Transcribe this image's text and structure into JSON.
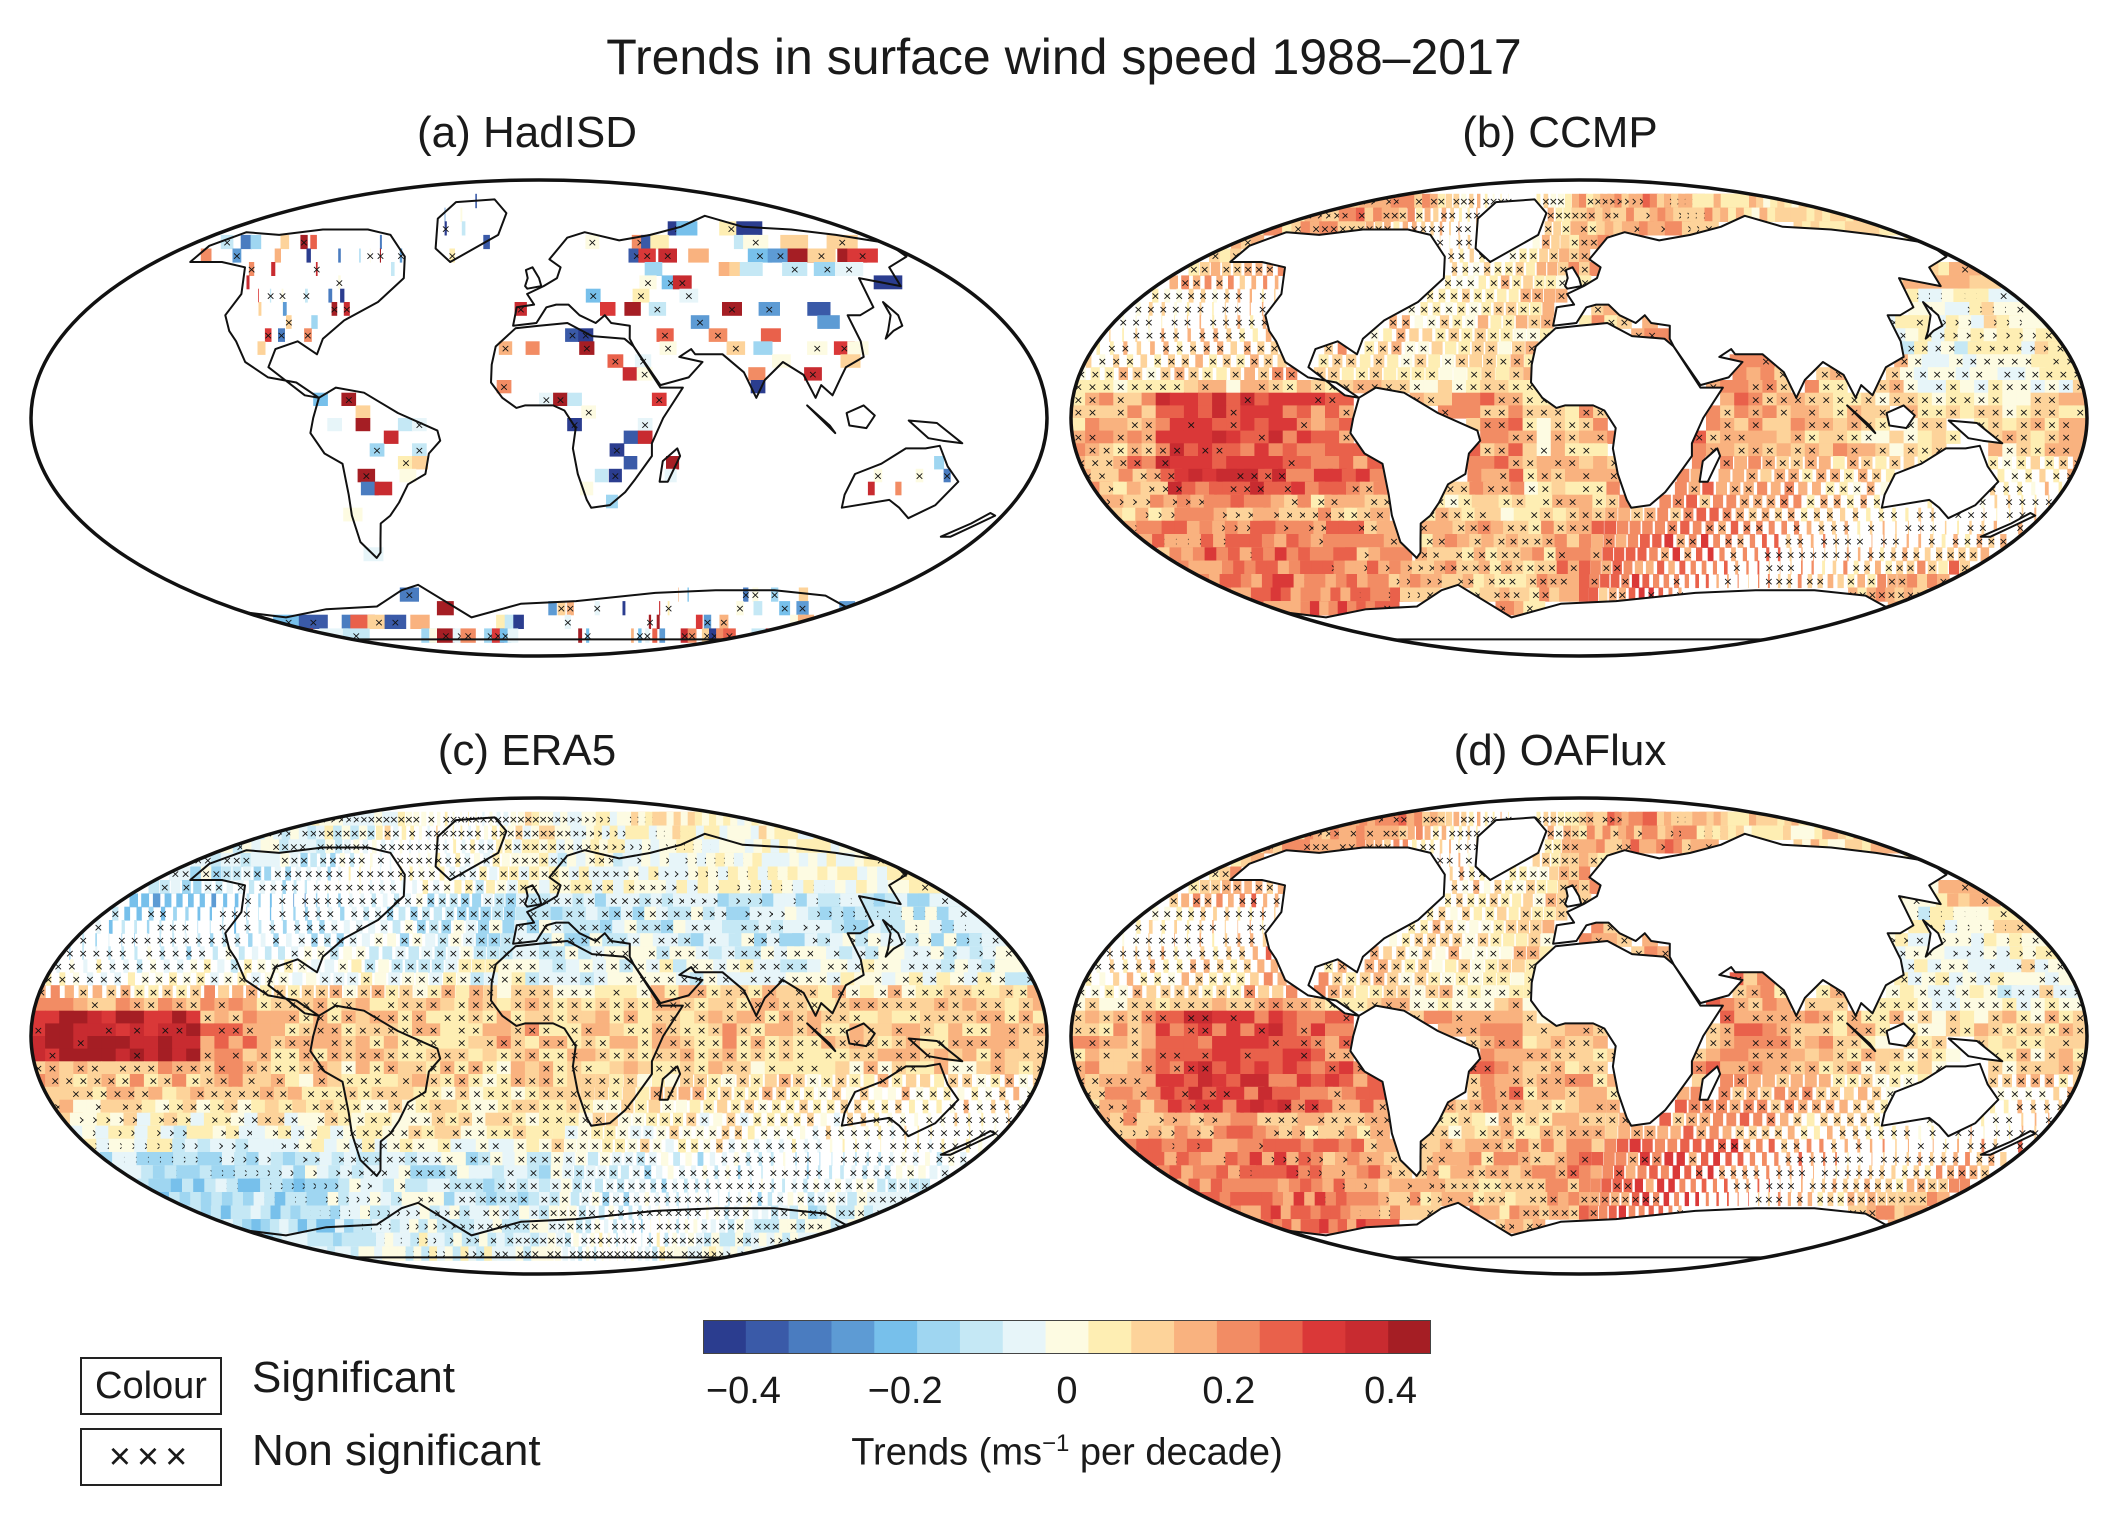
{
  "title": "Trends in surface wind speed 1988–2017",
  "panels": [
    {
      "id": "a",
      "label": "(a) HadISD",
      "type": "stations"
    },
    {
      "id": "b",
      "label": "(b) CCMP",
      "type": "ocean"
    },
    {
      "id": "c",
      "label": "(c) ERA5",
      "type": "global"
    },
    {
      "id": "d",
      "label": "(d) OAFlux",
      "type": "ocean"
    }
  ],
  "legend": {
    "colour_box": "Colour",
    "colour_text": "Significant",
    "cross_box": "×××",
    "cross_text": "Non significant"
  },
  "colorbar": {
    "ticks": [
      "−0.4",
      "−0.2",
      "0",
      "0.2",
      "0.4"
    ],
    "tick_values": [
      -0.4,
      -0.2,
      0,
      0.2,
      0.4
    ],
    "range": [
      -0.45,
      0.45
    ],
    "label_main": "Trends (ms",
    "label_sup": "−1",
    "label_tail": " per decade)",
    "colors": [
      "#2b3d8f",
      "#3a5aa8",
      "#4a7cc0",
      "#5d9bd4",
      "#77c0eb",
      "#9fd6f1",
      "#c5e8f5",
      "#e7f5f9",
      "#fdfbe2",
      "#feeeb3",
      "#fdd39a",
      "#f9b27f",
      "#f28c64",
      "#e9614b",
      "#da3838",
      "#c82b30",
      "#a51e24"
    ]
  },
  "colors": {
    "land_outline": "#111111",
    "cross": "#111111",
    "frame": "#111111"
  }
}
